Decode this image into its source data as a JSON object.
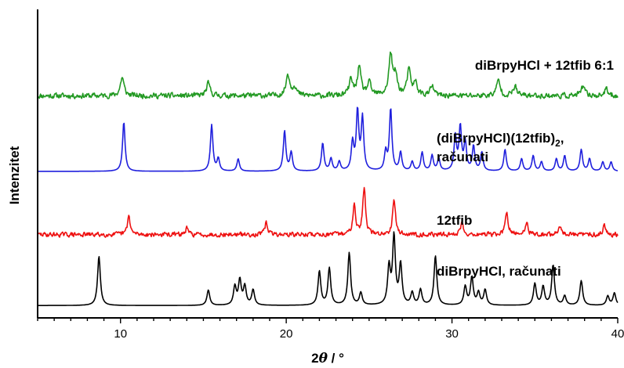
{
  "chart_data": {
    "type": "line",
    "xlabel_prefix": "2",
    "xlabel_theta": "θ",
    "xlabel_unit": " / °",
    "ylabel": "Intenzitet",
    "xlim": [
      5,
      40
    ],
    "x_ticks": [
      10,
      20,
      30,
      40
    ],
    "x_minor_step": 1,
    "grid": false,
    "colors": {
      "axis": "#000000"
    },
    "series": [
      {
        "id": "exp-mix",
        "name": "diBrpyHCl + 12tfib 6:1",
        "name_lines": [
          "diBrpyHCl + 12tfib 6:1"
        ],
        "color": "#229922",
        "baseline": 0.72,
        "noise": 0.012,
        "peak_width": 0.13,
        "seed": 11,
        "peaks": [
          [
            10.1,
            0.06
          ],
          [
            15.3,
            0.04
          ],
          [
            20.1,
            0.07
          ],
          [
            20.5,
            0.03
          ],
          [
            23.9,
            0.05
          ],
          [
            24.4,
            0.09
          ],
          [
            25.0,
            0.04
          ],
          [
            26.3,
            0.13
          ],
          [
            26.6,
            0.06
          ],
          [
            27.4,
            0.08
          ],
          [
            27.8,
            0.04
          ],
          [
            28.8,
            0.03
          ],
          [
            32.8,
            0.05
          ],
          [
            33.8,
            0.03
          ],
          [
            37.9,
            0.03
          ],
          [
            39.3,
            0.02
          ]
        ]
      },
      {
        "id": "calc-cocrystal",
        "name": "(diBrpyHCl)(12tfib)2, računati",
        "name_lines": [
          "(diBrpyHCl)(12tfib)",
          "2",
          ",",
          "računati"
        ],
        "color": "#1f1fdd",
        "baseline": 0.475,
        "noise": 0.0,
        "peak_width": 0.09,
        "seed": 0,
        "peaks": [
          [
            10.2,
            0.16
          ],
          [
            15.5,
            0.15
          ],
          [
            15.9,
            0.04
          ],
          [
            17.1,
            0.04
          ],
          [
            19.9,
            0.13
          ],
          [
            20.3,
            0.06
          ],
          [
            22.2,
            0.09
          ],
          [
            22.7,
            0.04
          ],
          [
            23.2,
            0.03
          ],
          [
            24.0,
            0.09
          ],
          [
            24.3,
            0.19
          ],
          [
            24.6,
            0.17
          ],
          [
            26.0,
            0.06
          ],
          [
            26.3,
            0.2
          ],
          [
            26.9,
            0.06
          ],
          [
            27.6,
            0.03
          ],
          [
            28.2,
            0.06
          ],
          [
            28.8,
            0.05
          ],
          [
            29.2,
            0.04
          ],
          [
            30.2,
            0.11
          ],
          [
            30.5,
            0.14
          ],
          [
            30.8,
            0.09
          ],
          [
            31.3,
            0.08
          ],
          [
            31.8,
            0.06
          ],
          [
            33.2,
            0.07
          ],
          [
            34.2,
            0.04
          ],
          [
            34.9,
            0.05
          ],
          [
            35.4,
            0.03
          ],
          [
            36.3,
            0.04
          ],
          [
            36.8,
            0.05
          ],
          [
            37.8,
            0.07
          ],
          [
            38.3,
            0.04
          ],
          [
            39.1,
            0.03
          ],
          [
            39.6,
            0.03
          ]
        ]
      },
      {
        "id": "exp-12tfib",
        "name": "12tfib",
        "name_lines": [
          "12tfib"
        ],
        "color": "#ee1111",
        "baseline": 0.27,
        "noise": 0.01,
        "peak_width": 0.1,
        "seed": 29,
        "peaks": [
          [
            10.5,
            0.06
          ],
          [
            14.0,
            0.02
          ],
          [
            18.8,
            0.04
          ],
          [
            24.1,
            0.1
          ],
          [
            24.7,
            0.15
          ],
          [
            26.5,
            0.12
          ],
          [
            30.6,
            0.04
          ],
          [
            33.3,
            0.07
          ],
          [
            34.5,
            0.04
          ],
          [
            36.5,
            0.03
          ],
          [
            39.2,
            0.03
          ]
        ]
      },
      {
        "id": "calc-diBrpyHCl",
        "name": "diBrpyHCl, računati",
        "name_lines": [
          "diBrpyHCl, računati"
        ],
        "color": "#000000",
        "baseline": 0.04,
        "noise": 0.0,
        "peak_width": 0.1,
        "seed": 0,
        "peaks": [
          [
            8.7,
            0.16
          ],
          [
            15.3,
            0.05
          ],
          [
            16.9,
            0.06
          ],
          [
            17.2,
            0.08
          ],
          [
            17.5,
            0.06
          ],
          [
            18.0,
            0.05
          ],
          [
            22.0,
            0.11
          ],
          [
            22.6,
            0.12
          ],
          [
            23.8,
            0.17
          ],
          [
            24.5,
            0.04
          ],
          [
            26.2,
            0.12
          ],
          [
            26.5,
            0.22
          ],
          [
            26.9,
            0.13
          ],
          [
            27.6,
            0.04
          ],
          [
            28.1,
            0.05
          ],
          [
            29.0,
            0.16
          ],
          [
            30.8,
            0.06
          ],
          [
            31.2,
            0.09
          ],
          [
            31.6,
            0.04
          ],
          [
            32.0,
            0.05
          ],
          [
            35.0,
            0.07
          ],
          [
            35.5,
            0.06
          ],
          [
            36.1,
            0.13
          ],
          [
            36.8,
            0.03
          ],
          [
            37.8,
            0.08
          ],
          [
            39.4,
            0.03
          ],
          [
            39.8,
            0.04
          ]
        ]
      }
    ]
  }
}
